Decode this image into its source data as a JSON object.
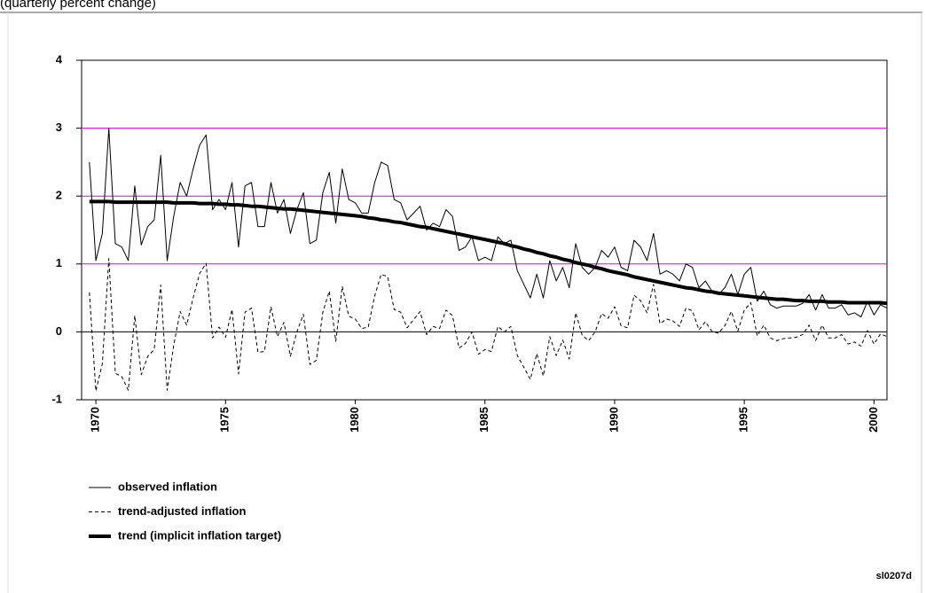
{
  "chart_data": {
    "type": "line",
    "subtitle": "(quarterly percent change)",
    "footnote": "sl0207d",
    "x": [
      1969.75,
      1970,
      1970.25,
      1970.5,
      1970.75,
      1971,
      1971.25,
      1971.5,
      1971.75,
      1972,
      1972.25,
      1972.5,
      1972.75,
      1973,
      1973.25,
      1973.5,
      1973.75,
      1974,
      1974.25,
      1974.5,
      1974.75,
      1975,
      1975.25,
      1975.5,
      1975.75,
      1976,
      1976.25,
      1976.5,
      1976.75,
      1977,
      1977.25,
      1977.5,
      1977.75,
      1978,
      1978.25,
      1978.5,
      1978.75,
      1979,
      1979.25,
      1979.5,
      1979.75,
      1980,
      1980.25,
      1980.5,
      1980.75,
      1981,
      1981.25,
      1981.5,
      1981.75,
      1982,
      1982.25,
      1982.5,
      1982.75,
      1983,
      1983.25,
      1983.5,
      1983.75,
      1984,
      1984.25,
      1984.5,
      1984.75,
      1985,
      1985.25,
      1985.5,
      1985.75,
      1986,
      1986.25,
      1986.5,
      1986.75,
      1987,
      1987.25,
      1987.5,
      1987.75,
      1988,
      1988.25,
      1988.5,
      1988.75,
      1989,
      1989.25,
      1989.5,
      1989.75,
      1990,
      1990.25,
      1990.5,
      1990.75,
      1991,
      1991.25,
      1991.5,
      1991.75,
      1992,
      1992.25,
      1992.5,
      1992.75,
      1993,
      1993.25,
      1993.5,
      1993.75,
      1994,
      1994.25,
      1994.5,
      1994.75,
      1995,
      1995.25,
      1995.5,
      1995.75,
      1996,
      1996.25,
      1996.5,
      1996.75,
      1997,
      1997.25,
      1997.5,
      1997.75,
      1998,
      1998.25,
      1998.5,
      1998.75,
      1999,
      1999.25,
      1999.5,
      1999.75,
      2000,
      2000.25,
      2000.5
    ],
    "series": [
      {
        "name": "observed inflation",
        "color": "#000000",
        "line_style": "solid",
        "line_width": 1,
        "values": [
          2.5,
          1.05,
          1.45,
          3.0,
          1.3,
          1.25,
          1.05,
          2.15,
          1.28,
          1.55,
          1.65,
          2.6,
          1.05,
          1.7,
          2.2,
          2.0,
          2.4,
          2.75,
          2.9,
          1.8,
          1.95,
          1.8,
          2.2,
          1.25,
          2.15,
          2.2,
          1.55,
          1.55,
          2.2,
          1.75,
          1.95,
          1.45,
          1.8,
          2.05,
          1.3,
          1.35,
          2.05,
          2.35,
          1.6,
          2.4,
          1.95,
          1.9,
          1.75,
          1.75,
          2.2,
          2.5,
          2.45,
          1.95,
          1.9,
          1.65,
          1.75,
          1.85,
          1.5,
          1.6,
          1.55,
          1.8,
          1.7,
          1.2,
          1.25,
          1.4,
          1.05,
          1.1,
          1.05,
          1.4,
          1.3,
          1.35,
          0.9,
          0.7,
          0.5,
          0.85,
          0.5,
          1.05,
          0.75,
          0.95,
          0.65,
          1.3,
          0.95,
          0.85,
          0.95,
          1.2,
          1.1,
          1.25,
          0.95,
          0.9,
          1.35,
          1.25,
          1.05,
          1.45,
          0.85,
          0.9,
          0.85,
          0.75,
          1.0,
          0.95,
          0.65,
          0.75,
          0.6,
          0.55,
          0.65,
          0.85,
          0.55,
          0.85,
          0.95,
          0.45,
          0.6,
          0.4,
          0.35,
          0.38,
          0.38,
          0.38,
          0.42,
          0.55,
          0.32,
          0.55,
          0.35,
          0.35,
          0.4,
          0.25,
          0.28,
          0.22,
          0.45,
          0.25,
          0.4,
          0.35
        ]
      },
      {
        "name": "trend-adjusted inflation",
        "color": "#000000",
        "line_style": "dashed",
        "line_width": 1,
        "values": [
          0.58,
          -0.87,
          -0.47,
          1.08,
          -0.61,
          -0.66,
          -0.86,
          0.24,
          -0.63,
          -0.36,
          -0.26,
          0.69,
          -0.86,
          -0.2,
          0.3,
          0.1,
          0.5,
          0.86,
          1.01,
          -0.09,
          0.07,
          -0.08,
          0.33,
          -0.62,
          0.29,
          0.35,
          -0.3,
          -0.29,
          0.37,
          -0.07,
          0.14,
          -0.36,
          0,
          0.26,
          -0.48,
          -0.42,
          0.29,
          0.6,
          -0.14,
          0.67,
          0.23,
          0.19,
          0.05,
          0.07,
          0.53,
          0.85,
          0.81,
          0.33,
          0.29,
          0.06,
          0.18,
          0.3,
          -0.04,
          0.08,
          0.05,
          0.32,
          0.24,
          -0.24,
          -0.17,
          0,
          -0.33,
          -0.26,
          -0.29,
          0.08,
          0,
          0.08,
          -0.35,
          -0.52,
          -0.7,
          -0.32,
          -0.65,
          -0.07,
          -0.35,
          -0.12,
          -0.4,
          0.28,
          -0.05,
          -0.13,
          0,
          0.27,
          0.2,
          0.37,
          0.09,
          0.06,
          0.54,
          0.46,
          0.28,
          0.7,
          0.12,
          0.19,
          0.16,
          0.08,
          0.35,
          0.31,
          0.03,
          0.15,
          0.01,
          -0.02,
          0.09,
          0.3,
          0.01,
          0.32,
          0.43,
          -0.06,
          0.1,
          -0.09,
          -0.13,
          -0.1,
          -0.09,
          -0.08,
          -0.04,
          0.1,
          -0.13,
          0.1,
          -0.09,
          -0.09,
          -0.04,
          -0.18,
          -0.15,
          -0.21,
          0.02,
          -0.18,
          -0.03,
          -0.07
        ]
      },
      {
        "name": "trend (implicit inflation target)",
        "color": "#000000",
        "line_style": "solid",
        "line_width": 4,
        "values": [
          1.92,
          1.92,
          1.92,
          1.92,
          1.91,
          1.91,
          1.91,
          1.91,
          1.91,
          1.91,
          1.91,
          1.91,
          1.91,
          1.9,
          1.9,
          1.9,
          1.9,
          1.89,
          1.89,
          1.89,
          1.88,
          1.88,
          1.87,
          1.87,
          1.86,
          1.85,
          1.85,
          1.84,
          1.83,
          1.82,
          1.81,
          1.81,
          1.8,
          1.79,
          1.78,
          1.77,
          1.76,
          1.75,
          1.74,
          1.73,
          1.72,
          1.71,
          1.7,
          1.68,
          1.67,
          1.65,
          1.64,
          1.62,
          1.61,
          1.59,
          1.57,
          1.55,
          1.54,
          1.52,
          1.5,
          1.48,
          1.46,
          1.44,
          1.42,
          1.4,
          1.38,
          1.36,
          1.34,
          1.32,
          1.3,
          1.27,
          1.25,
          1.22,
          1.2,
          1.17,
          1.15,
          1.12,
          1.1,
          1.07,
          1.05,
          1.02,
          1.0,
          0.98,
          0.95,
          0.93,
          0.9,
          0.88,
          0.86,
          0.84,
          0.81,
          0.79,
          0.77,
          0.75,
          0.73,
          0.71,
          0.69,
          0.67,
          0.65,
          0.64,
          0.62,
          0.6,
          0.59,
          0.57,
          0.56,
          0.55,
          0.54,
          0.53,
          0.52,
          0.51,
          0.5,
          0.49,
          0.48,
          0.48,
          0.47,
          0.46,
          0.46,
          0.45,
          0.45,
          0.45,
          0.44,
          0.44,
          0.44,
          0.43,
          0.43,
          0.43,
          0.43,
          0.43,
          0.43,
          0.42
        ]
      }
    ],
    "xlim": [
      1969.45,
      2000.5
    ],
    "xticks": [
      1970,
      1975,
      1980,
      1985,
      1990,
      1995,
      2000
    ],
    "ylim": [
      -1,
      4
    ],
    "yticks": [
      -1,
      0,
      1,
      2,
      3,
      4
    ],
    "grid": true,
    "grid_color": "#e000e0",
    "zero_line": true,
    "legend": "bottom-left"
  }
}
